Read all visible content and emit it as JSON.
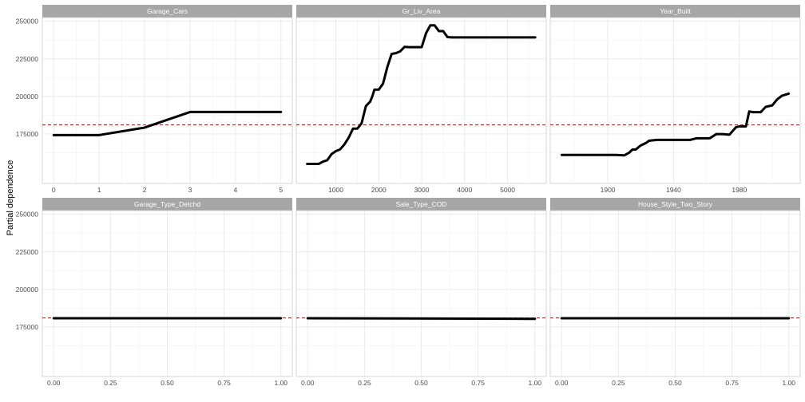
{
  "chart_data": {
    "type": "line",
    "ylabel": "Partial dependence",
    "ylim": [
      142000,
      252500
    ],
    "y_ticks": [
      175000,
      200000,
      225000,
      250000
    ],
    "y_tick_labels": [
      "175000",
      "200000",
      "225000",
      "250000"
    ],
    "reference_line": {
      "y": 181000,
      "color": "#d7191c",
      "style": "dashed"
    },
    "line_color": "#000000",
    "grid": true,
    "strip_color": "#a6a6a6",
    "panels": [
      {
        "title": "Garage_Cars",
        "xlim": [
          -0.25,
          5.25
        ],
        "x_ticks": [
          0,
          1,
          2,
          3,
          4,
          5
        ],
        "x_tick_labels": [
          "0",
          "1",
          "2",
          "3",
          "4",
          "5"
        ],
        "x": [
          0,
          1,
          2,
          3,
          4,
          5
        ],
        "y": [
          174200,
          174200,
          179200,
          189600,
          189600,
          189600
        ]
      },
      {
        "title": "Gr_Liv_Area",
        "xlim": [
          80,
          5900
        ],
        "x_ticks": [
          1000,
          2000,
          3000,
          4000,
          5000
        ],
        "x_tick_labels": [
          "1000",
          "2000",
          "3000",
          "4000",
          "5000"
        ],
        "x": [
          334,
          600,
          700,
          800,
          900,
          1000,
          1100,
          1200,
          1300,
          1400,
          1500,
          1600,
          1700,
          1800,
          1850,
          1900,
          2000,
          2100,
          2200,
          2300,
          2400,
          2500,
          2600,
          2700,
          2800,
          2900,
          3000,
          3100,
          3200,
          3300,
          3400,
          3500,
          3600,
          3700,
          5642
        ],
        "y": [
          155000,
          155000,
          156500,
          157500,
          161500,
          163500,
          164700,
          168000,
          172500,
          178500,
          178500,
          182000,
          193500,
          196500,
          200000,
          204500,
          204500,
          208500,
          219500,
          228300,
          228800,
          230000,
          233000,
          232800,
          232800,
          232800,
          232800,
          242000,
          247300,
          247300,
          243500,
          243500,
          239500,
          239300,
          239300
        ]
      },
      {
        "title": "Year_Built",
        "xlim": [
          1865,
          2017
        ],
        "x_ticks": [
          1900,
          1940,
          1980
        ],
        "x_tick_labels": [
          "1900",
          "1940",
          "1980"
        ],
        "x": [
          1872,
          1900,
          1905,
          1910,
          1913,
          1915,
          1917,
          1920,
          1923,
          1925,
          1928,
          1930,
          1935,
          1940,
          1945,
          1950,
          1954,
          1958,
          1962,
          1966,
          1970,
          1974,
          1978,
          1980,
          1984,
          1986,
          1988,
          1993,
          1996,
          2000,
          2003,
          2006,
          2010
        ],
        "y": [
          161000,
          161000,
          161000,
          160700,
          162500,
          164600,
          164600,
          167300,
          168800,
          170400,
          170800,
          171000,
          171000,
          171000,
          171000,
          171000,
          172100,
          172100,
          172100,
          174900,
          174900,
          174500,
          179500,
          180000,
          180000,
          190000,
          189500,
          189500,
          193000,
          194000,
          198000,
          200500,
          201800
        ]
      },
      {
        "title": "Garage_Type_Detchd",
        "xlim": [
          -0.05,
          1.05
        ],
        "x_ticks": [
          0,
          0.25,
          0.5,
          0.75,
          1
        ],
        "x_tick_labels": [
          "0.00",
          "0.25",
          "0.50",
          "0.75",
          "1.00"
        ],
        "x": [
          0,
          1
        ],
        "y": [
          180800,
          180800
        ]
      },
      {
        "title": "Sale_Type_COD",
        "xlim": [
          -0.05,
          1.05
        ],
        "x_ticks": [
          0,
          0.25,
          0.5,
          0.75,
          1
        ],
        "x_tick_labels": [
          "0.00",
          "0.25",
          "0.50",
          "0.75",
          "1.00"
        ],
        "x": [
          0,
          1
        ],
        "y": [
          180800,
          180400
        ]
      },
      {
        "title": "House_Style_Two_Story",
        "xlim": [
          -0.05,
          1.05
        ],
        "x_ticks": [
          0,
          0.25,
          0.5,
          0.75,
          1
        ],
        "x_tick_labels": [
          "0.00",
          "0.25",
          "0.50",
          "0.75",
          "1.00"
        ],
        "x": [
          0,
          1
        ],
        "y": [
          180800,
          180800
        ]
      }
    ]
  }
}
